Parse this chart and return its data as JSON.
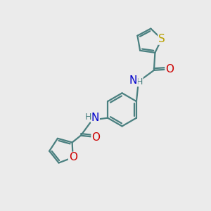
{
  "background_color": "#ebebeb",
  "bond_color": "#4a8080",
  "S_color": "#b8a000",
  "O_color": "#cc0000",
  "N_color": "#0000cc",
  "bond_width": 1.6,
  "font_size_atom": 10,
  "figsize": [
    3.0,
    3.0
  ],
  "dpi": 100,
  "xlim": [
    0,
    10
  ],
  "ylim": [
    0,
    10
  ]
}
